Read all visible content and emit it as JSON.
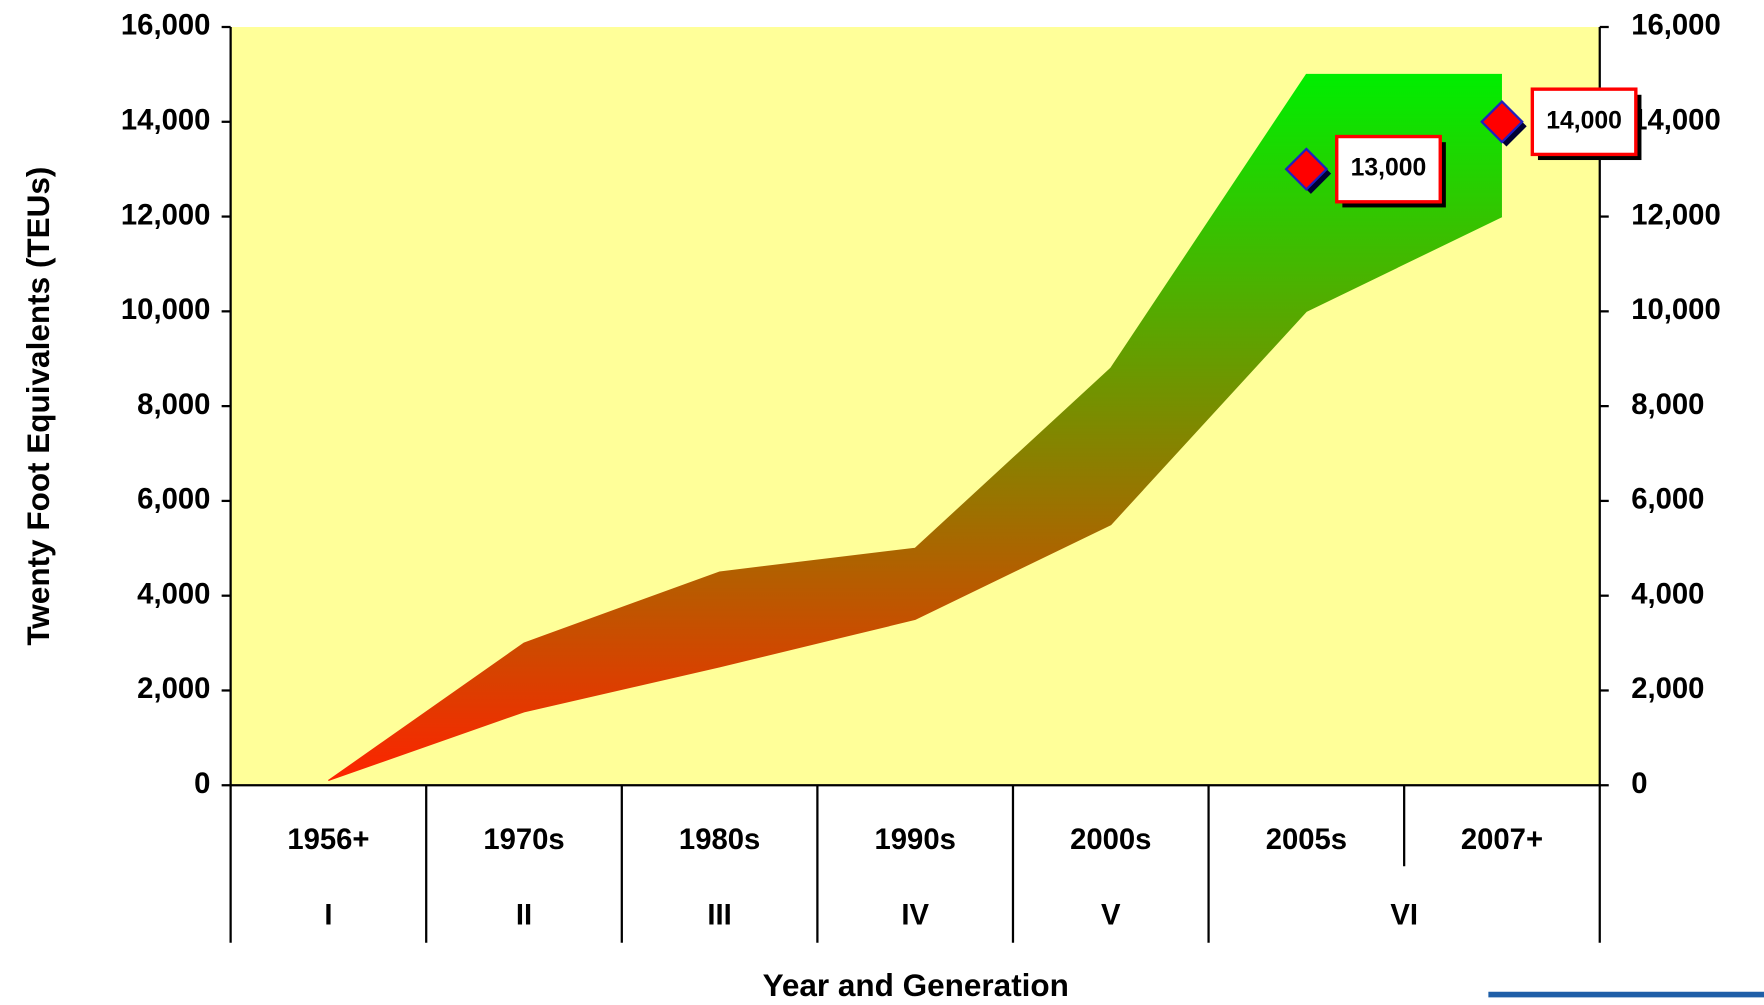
{
  "chart_data": {
    "type": "range-area",
    "ylabel": "Twenty Foot Equivalents (TEUs)",
    "xlabel": "Year and Generation",
    "categories": [
      "1956+",
      "1970s",
      "1980s",
      "1990s",
      "2000s",
      "2005s",
      "2007+"
    ],
    "groups": [
      {
        "label": "I",
        "size": 1
      },
      {
        "label": "II",
        "size": 1
      },
      {
        "label": "III",
        "size": 1
      },
      {
        "label": "IV",
        "size": 1
      },
      {
        "label": "V",
        "size": 1
      },
      {
        "label": "VI",
        "size": 2
      }
    ],
    "band_low": [
      100,
      1550,
      2500,
      3500,
      5500,
      10000,
      12000
    ],
    "band_high": [
      100,
      3000,
      4500,
      5000,
      8800,
      15000,
      15000
    ],
    "band_colors": [
      "#ff2200",
      "#00ee00"
    ],
    "points": {
      "values": [
        null,
        null,
        null,
        null,
        null,
        13000,
        14000
      ],
      "value_labels": [
        null,
        null,
        null,
        null,
        null,
        "13,000",
        "14,000"
      ],
      "color": "#ff0000"
    },
    "background": "#ffff99",
    "ylim": [
      0,
      16000
    ],
    "yticks": [
      0,
      {
        "value": 2000,
        "label": "2,000"
      },
      {
        "value": 4000,
        "label": "4,000"
      },
      {
        "value": 6000,
        "label": "6,000"
      },
      {
        "value": 8000,
        "label": "8,000"
      },
      {
        "value": 10000,
        "label": "10,000"
      },
      {
        "value": 12000,
        "label": "12,000"
      },
      {
        "value": 14000,
        "label": "14,000"
      },
      {
        "value": 16000,
        "label": "16,000"
      }
    ],
    "y2lim": [
      0,
      16000
    ],
    "y2ticks": [
      0,
      {
        "value": 2000,
        "label": "2,000"
      },
      {
        "value": 4000,
        "label": "4,000"
      },
      {
        "value": 6000,
        "label": "6,000"
      },
      {
        "value": 8000,
        "label": "8,000"
      },
      {
        "value": 10000,
        "label": "10,000"
      },
      {
        "value": 12000,
        "label": "12,000"
      },
      {
        "value": 14000,
        "label": "14,000"
      },
      {
        "value": 16000,
        "label": "16,000"
      }
    ]
  }
}
